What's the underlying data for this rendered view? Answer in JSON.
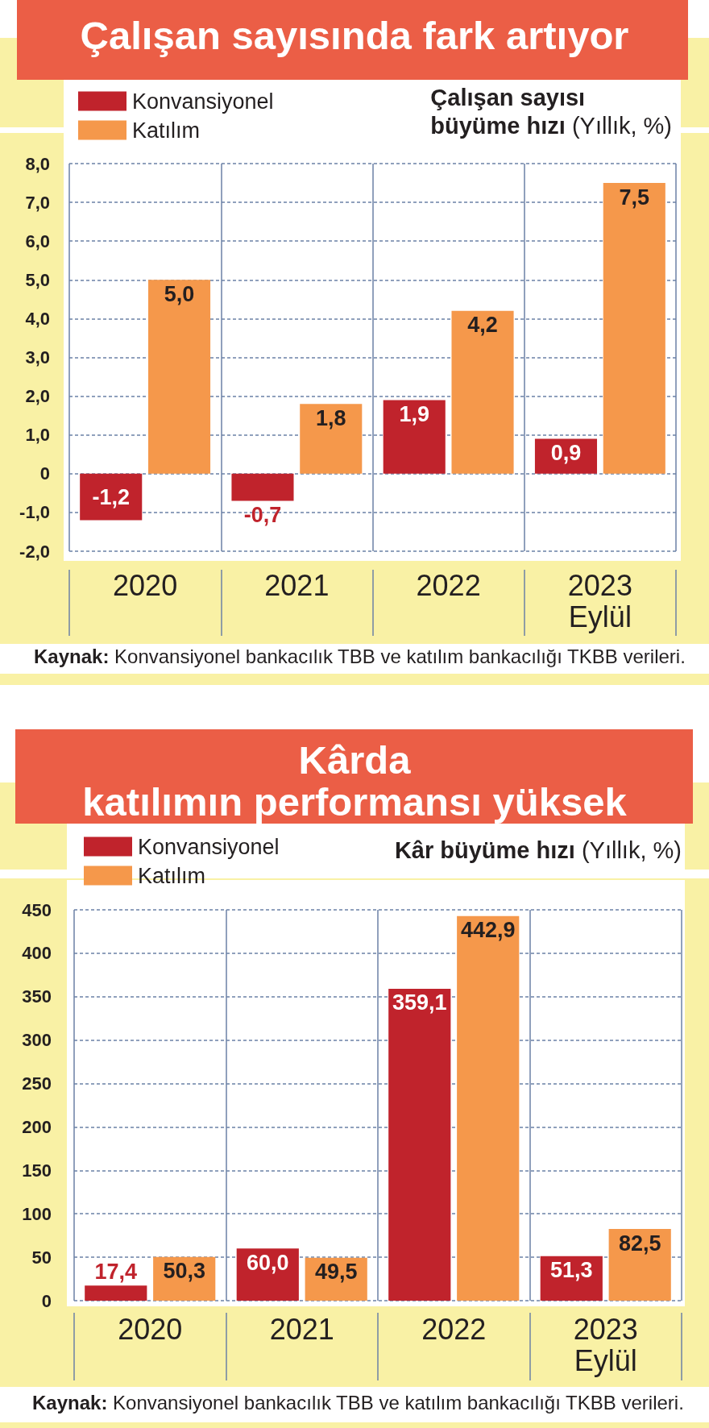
{
  "chart_data": [
    {
      "type": "bar",
      "title": "Çalışan sayısında fark artıyor",
      "subtitle": "Çalışan sayısı\nbüyüme hızı (Yıllık, %)",
      "categories": [
        "2020",
        "2021",
        "2022",
        "2023\nEylül"
      ],
      "series": [
        {
          "name": "Konvansiyonel",
          "color": "#c0232c",
          "values": [
            -1.2,
            -0.7,
            1.9,
            0.9
          ],
          "value_labels": [
            "-1,2",
            "-0,7",
            "1,9",
            "0,9"
          ]
        },
        {
          "name": "Katılım",
          "color": "#f5984b",
          "values": [
            5.0,
            1.8,
            4.2,
            7.5
          ],
          "value_labels": [
            "5,0",
            "1,8",
            "4,2",
            "7,5"
          ]
        }
      ],
      "ylim": [
        -2,
        8
      ],
      "yticks": [
        {
          "value": -2,
          "label": "-2,0"
        },
        {
          "value": -1,
          "label": "-1,0"
        },
        0,
        {
          "value": 1,
          "label": "1,0"
        },
        {
          "value": 2,
          "label": "2,0"
        },
        {
          "value": 3,
          "label": "3,0"
        },
        {
          "value": 4,
          "label": "4,0"
        },
        {
          "value": 5,
          "label": "5,0"
        },
        {
          "value": 6,
          "label": "6,0"
        },
        {
          "value": 7,
          "label": "7,0"
        },
        {
          "value": 8,
          "label": "8,0"
        }
      ],
      "grid": true,
      "legend": "top left",
      "annotations": [
        "Kaynak: Konvansiyonel bankacılık TBB ve katılım bankacılığı TKBB verileri."
      ]
    },
    {
      "type": "bar",
      "title": "Kârda\nkatılımın performansı yüksek",
      "subtitle": "Kâr büyüme hızı (Yıllık, %)",
      "categories": [
        "2020",
        "2021",
        "2022",
        "2023\nEylül"
      ],
      "series": [
        {
          "name": "Konvansiyonel",
          "color": "#c0232c",
          "values": [
            17.4,
            60.0,
            359.1,
            51.3
          ],
          "value_labels": [
            "17,4",
            "60,0",
            "359,1",
            "51,3"
          ]
        },
        {
          "name": "Katılım",
          "color": "#f5984b",
          "values": [
            50.3,
            49.5,
            442.9,
            82.5
          ],
          "value_labels": [
            "50,3",
            "49,5",
            "442,9",
            "82,5"
          ]
        }
      ],
      "ylim": [
        0,
        450
      ],
      "yticks": [
        0,
        50,
        100,
        150,
        200,
        250,
        300,
        350,
        400,
        450
      ],
      "grid": true,
      "legend": "top left",
      "annotations": [
        "Kaynak: Konvansiyonel bankacılık TBB ve katılım bankacılığı TKBB verileri."
      ]
    }
  ]
}
